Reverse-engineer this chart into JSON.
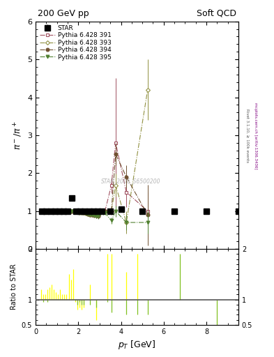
{
  "title_left": "200 GeV pp",
  "title_right": "Soft QCD",
  "ylabel_main": "$\\pi^- / \\pi^+$",
  "ylabel_ratio": "Ratio to STAR",
  "xlabel": "$p_T$ [GeV]",
  "right_label": "mcplots.cern.ch [arXiv:1306.3436]",
  "right_label2": "Rivet 3.1.10, ≥ 100k events",
  "watermark": "STAR_2006_S6500200",
  "ylim_main": [
    0.0,
    6.0
  ],
  "ylim_ratio": [
    0.5,
    2.0
  ],
  "xlim": [
    0.0,
    9.5
  ],
  "star_x": [
    0.3,
    0.5,
    0.7,
    0.9,
    1.1,
    1.3,
    1.5,
    1.7,
    1.9,
    2.1,
    2.3,
    2.5,
    2.7,
    2.9,
    3.1,
    3.5,
    4.0,
    5.0,
    6.5,
    8.0,
    9.5
  ],
  "star_y": [
    1.0,
    1.0,
    1.0,
    1.0,
    1.0,
    1.0,
    1.0,
    1.35,
    1.0,
    1.0,
    1.0,
    1.0,
    1.0,
    1.0,
    1.0,
    1.0,
    1.05,
    1.0,
    1.0,
    1.0,
    1.0
  ],
  "star_yerr": [
    0.04,
    0.04,
    0.04,
    0.04,
    0.04,
    0.04,
    0.04,
    0.06,
    0.04,
    0.04,
    0.04,
    0.04,
    0.04,
    0.04,
    0.04,
    0.04,
    0.05,
    0.04,
    0.04,
    0.04,
    0.04
  ],
  "p391_x": [
    0.25,
    0.35,
    0.45,
    0.55,
    0.65,
    0.75,
    0.85,
    0.95,
    1.05,
    1.15,
    1.25,
    1.35,
    1.45,
    1.55,
    1.65,
    1.75,
    1.85,
    1.95,
    2.05,
    2.15,
    2.25,
    2.35,
    2.45,
    2.55,
    2.65,
    2.75,
    2.85,
    2.95,
    3.05,
    3.15,
    3.25,
    3.55,
    3.75,
    4.25,
    5.25
  ],
  "p391_y": [
    1.01,
    1.0,
    1.0,
    1.0,
    1.0,
    1.0,
    1.0,
    1.01,
    1.0,
    1.0,
    1.0,
    1.0,
    1.0,
    1.0,
    1.0,
    1.0,
    0.99,
    0.99,
    0.98,
    0.97,
    0.96,
    0.95,
    0.94,
    0.93,
    0.92,
    0.91,
    0.9,
    0.9,
    0.98,
    1.0,
    1.0,
    1.68,
    2.8,
    1.5,
    1.0
  ],
  "p391_yerr": [
    0.02,
    0.02,
    0.02,
    0.02,
    0.02,
    0.02,
    0.02,
    0.02,
    0.02,
    0.02,
    0.02,
    0.02,
    0.02,
    0.02,
    0.02,
    0.02,
    0.02,
    0.02,
    0.02,
    0.02,
    0.03,
    0.03,
    0.04,
    0.04,
    0.05,
    0.05,
    0.06,
    0.06,
    0.05,
    0.05,
    0.05,
    0.2,
    1.7,
    0.4,
    0.5
  ],
  "p391_color": "#a05060",
  "p393_x": [
    0.25,
    0.35,
    0.45,
    0.55,
    0.65,
    0.75,
    0.85,
    0.95,
    1.05,
    1.15,
    1.25,
    1.35,
    1.45,
    1.55,
    1.65,
    1.75,
    1.85,
    1.95,
    2.05,
    2.15,
    2.25,
    2.35,
    2.45,
    2.55,
    2.65,
    2.75,
    2.85,
    2.95,
    3.05,
    3.15,
    3.25,
    3.55,
    3.75,
    4.25,
    5.25
  ],
  "p393_y": [
    1.0,
    1.0,
    1.0,
    1.0,
    1.0,
    1.0,
    0.99,
    1.0,
    1.0,
    1.0,
    0.99,
    0.99,
    0.99,
    0.99,
    0.99,
    1.0,
    0.98,
    0.97,
    0.96,
    0.95,
    0.95,
    0.94,
    0.92,
    0.91,
    0.91,
    0.9,
    0.89,
    0.88,
    0.97,
    0.99,
    1.0,
    1.0,
    1.68,
    0.7,
    4.2
  ],
  "p393_yerr": [
    0.02,
    0.02,
    0.02,
    0.02,
    0.02,
    0.02,
    0.02,
    0.02,
    0.02,
    0.02,
    0.02,
    0.02,
    0.02,
    0.02,
    0.02,
    0.02,
    0.02,
    0.02,
    0.02,
    0.02,
    0.03,
    0.03,
    0.04,
    0.04,
    0.05,
    0.05,
    0.06,
    0.06,
    0.05,
    0.05,
    0.05,
    0.08,
    0.3,
    0.3,
    0.8
  ],
  "p393_color": "#909040",
  "p394_x": [
    0.25,
    0.35,
    0.45,
    0.55,
    0.65,
    0.75,
    0.85,
    0.95,
    1.05,
    1.15,
    1.25,
    1.35,
    1.45,
    1.55,
    1.65,
    1.75,
    1.85,
    1.95,
    2.05,
    2.15,
    2.25,
    2.35,
    2.45,
    2.55,
    2.65,
    2.75,
    2.85,
    2.95,
    3.05,
    3.15,
    3.25,
    3.55,
    3.75,
    4.25,
    5.25
  ],
  "p394_y": [
    1.0,
    1.0,
    1.0,
    1.0,
    1.0,
    1.0,
    1.0,
    1.0,
    1.0,
    1.0,
    1.0,
    1.0,
    1.0,
    1.0,
    1.0,
    1.0,
    1.0,
    1.0,
    0.98,
    0.97,
    0.96,
    0.95,
    0.93,
    0.91,
    0.9,
    0.89,
    0.88,
    0.87,
    0.98,
    1.0,
    1.0,
    1.0,
    2.5,
    1.9,
    0.9
  ],
  "p394_yerr": [
    0.02,
    0.02,
    0.02,
    0.02,
    0.02,
    0.02,
    0.02,
    0.02,
    0.02,
    0.02,
    0.02,
    0.02,
    0.02,
    0.02,
    0.02,
    0.02,
    0.02,
    0.02,
    0.02,
    0.02,
    0.03,
    0.03,
    0.04,
    0.04,
    0.05,
    0.05,
    0.06,
    0.06,
    0.05,
    0.05,
    0.05,
    0.1,
    0.3,
    0.3,
    0.8
  ],
  "p394_color": "#705030",
  "p395_x": [
    0.25,
    0.35,
    0.45,
    0.55,
    0.65,
    0.75,
    0.85,
    0.95,
    1.05,
    1.15,
    1.25,
    1.35,
    1.45,
    1.55,
    1.65,
    1.75,
    1.85,
    1.95,
    2.05,
    2.15,
    2.25,
    2.35,
    2.45,
    2.55,
    2.65,
    2.75,
    2.85,
    2.95,
    3.05,
    3.15,
    3.25,
    3.55,
    3.75,
    4.25,
    5.25
  ],
  "p395_y": [
    1.0,
    1.0,
    1.0,
    1.0,
    1.0,
    1.0,
    0.99,
    1.0,
    1.0,
    1.0,
    1.0,
    1.0,
    1.0,
    1.0,
    1.0,
    1.0,
    0.98,
    0.97,
    0.96,
    0.95,
    0.95,
    0.94,
    0.92,
    0.91,
    0.9,
    0.88,
    0.87,
    0.86,
    0.95,
    0.95,
    0.95,
    0.75,
    1.0,
    0.7,
    0.7
  ],
  "p395_yerr": [
    0.02,
    0.02,
    0.02,
    0.02,
    0.02,
    0.02,
    0.02,
    0.02,
    0.02,
    0.02,
    0.02,
    0.02,
    0.02,
    0.02,
    0.02,
    0.02,
    0.02,
    0.02,
    0.02,
    0.02,
    0.03,
    0.03,
    0.04,
    0.04,
    0.05,
    0.05,
    0.06,
    0.06,
    0.05,
    0.05,
    0.05,
    0.08,
    0.15,
    0.2,
    0.3
  ],
  "p395_color": "#508030",
  "ratio_391_x": [
    0.25,
    0.35,
    0.45,
    0.55,
    0.65,
    0.75,
    0.85,
    0.95,
    1.05,
    1.15,
    1.25,
    1.35,
    1.45,
    1.55,
    1.65,
    1.75,
    1.85,
    1.95,
    2.05,
    2.15,
    2.25,
    2.55,
    2.85,
    3.35,
    3.55,
    4.25,
    4.75,
    5.25,
    6.75,
    8.5
  ],
  "ratio_391_y": [
    1.2,
    1.1,
    1.1,
    1.2,
    1.25,
    1.3,
    1.2,
    1.15,
    1.1,
    1.2,
    1.1,
    1.1,
    1.1,
    1.5,
    1.4,
    1.6,
    0.95,
    0.8,
    0.85,
    0.8,
    0.85,
    1.3,
    0.6,
    1.9,
    1.9,
    1.55,
    1.9,
    1.0,
    1.0,
    1.0
  ],
  "ratio_391_color": "#ffff00",
  "ratio_395_x": [
    0.25,
    0.35,
    0.45,
    0.55,
    0.65,
    0.75,
    0.85,
    0.95,
    1.05,
    1.15,
    1.25,
    1.35,
    1.45,
    1.55,
    1.65,
    1.75,
    1.85,
    1.95,
    2.05,
    2.15,
    2.25,
    2.55,
    2.85,
    3.35,
    3.55,
    4.25,
    4.75,
    5.25,
    6.75,
    8.5
  ],
  "ratio_395_y": [
    1.0,
    0.95,
    1.0,
    0.95,
    1.0,
    1.0,
    0.99,
    1.0,
    1.0,
    1.0,
    1.0,
    1.0,
    1.0,
    1.0,
    1.0,
    1.0,
    0.98,
    0.9,
    0.95,
    0.9,
    0.9,
    0.9,
    0.85,
    0.95,
    0.75,
    0.7,
    0.7,
    0.7,
    1.9,
    0.5
  ],
  "ratio_395_color": "#80c020"
}
